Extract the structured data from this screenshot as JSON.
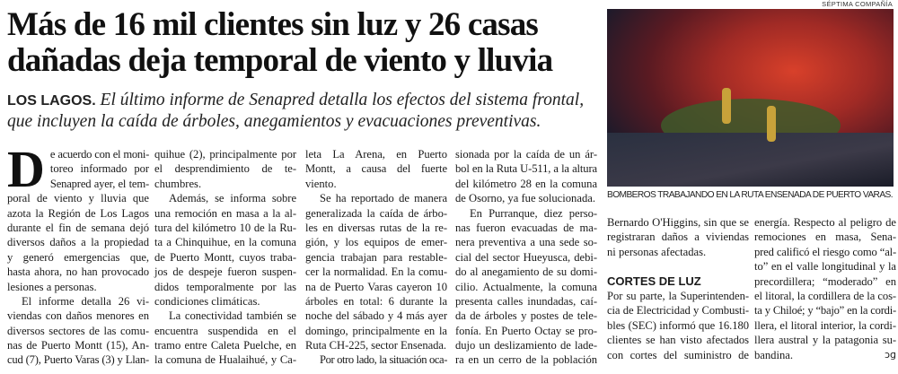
{
  "headline": [
    "Más de 16 mil clientes sin luz y 26 casas",
    "dañadas deja temporal de viento y lluvia"
  ],
  "subhead": {
    "kicker": "LOS LAGOS.",
    "lines": [
      " El último informe de Senapred detalla los efectos del sistema frontal,",
      "que incluyen la caída de árboles, anegamientos y evacuaciones preventivas."
    ]
  },
  "photo": {
    "credit": "SÉPTIMA COMPAÑÍA",
    "caption": "BOMBEROS TRABAJANDO EN LA RUTA ENSENADA DE PUERTO VARAS."
  },
  "body": {
    "dropcap": "D",
    "col1_cap": [
      "e acuerdo con el moni-",
      "toreo informado por",
      "Senapred ayer, el tem-"
    ],
    "col1": [
      "poral de viento y lluvia que",
      "azota la Región de Los Lagos",
      "durante el fin de semana dejó",
      "diversos daños a la propiedad",
      "y generó emergencias que,",
      "hasta ahora, no han provocado",
      "lesiones a personas.",
      "El informe detalla 26 vi-",
      "viendas con daños menores en",
      "diversos sectores de las comu-",
      "nas de Puerto Montt (15), An-",
      "cud (7), Puerto Varas (3) y Llan-"
    ],
    "col2": [
      "quihue (2), principalmente por",
      "el desprendimiento de te-",
      "chumbres.",
      "Además, se informa sobre",
      "una remoción en masa a la al-",
      "tura del kilómetro 10 de la Ru-",
      "ta a Chinquihue, en la comuna",
      "de Puerto Montt, cuyos traba-",
      "jos de despeje fueron suspen-",
      "didos temporalmente por las",
      "condiciones climáticas.",
      "La conectividad también se",
      "encuentra suspendida en el",
      "tramo entre Caleta Puelche, en",
      "la comuna de Hualaihué, y Ca-"
    ],
    "col3": [
      "leta La Arena, en Puerto",
      "Montt, a causa del fuerte",
      "viento.",
      "Se ha reportado de manera",
      "generalizada la caída de árbo-",
      "les en diversas rutas de la re-",
      "gión, y los equipos de emer-",
      "gencia trabajan para restable-",
      "cer la normalidad. En la comu-",
      "na de Puerto Varas cayeron 10",
      "árboles en total: 6 durante la",
      "noche del sábado y 4 más ayer",
      "domingo, principalmente en la",
      "Ruta CH-225, sector Ensenada.",
      "Por otro lado, la situación oca-"
    ],
    "col4": [
      "sionada por la caída de un ár-",
      "bol en la Ruta U-511, a la altura",
      "del kilómetro 28 en la comuna",
      "de Osorno, ya fue solucionada.",
      "En Purranque, diez perso-",
      "nas fueron evacuadas de ma-",
      "nera preventiva a una sede so-",
      "cial del sector Hueyusca, debi-",
      "do al anegamiento de su domi-",
      "cilio. Actualmente, la comuna",
      "presenta calles inundadas, caí-",
      "da de árboles y postes de tele-",
      "fonía. En Puerto Octay se pro-",
      "dujo un deslizamiento de lade-",
      "ra en un cerro de la población"
    ],
    "col5a": [
      "Bernardo O'Higgins, sin que se",
      "registraran daños a viviendas",
      "ni personas afectadas."
    ],
    "section_title": "CORTES DE LUZ",
    "col5b": [
      "Por su parte, la Superintenden-",
      "cia de Electricidad y Combusti-",
      "bles (SEC) informó que 16.180",
      "clientes se han visto afectados",
      "con cortes del suministro de"
    ],
    "col6": [
      "energía. Respecto al peligro de",
      "remociones en masa, Sena-",
      "pred calificó el riesgo como “al-",
      "to” en el valle longitudinal y la",
      "precordillera; “moderado” en",
      "el litoral, la cordillera de la cos-",
      "ta y Chiloé; y “bajo” en la cordi-",
      "llera, el litoral interior, la cordi-",
      "llera austral y la patagonia su-",
      "bandina."
    ],
    "end_mark": "ɔɡ"
  }
}
